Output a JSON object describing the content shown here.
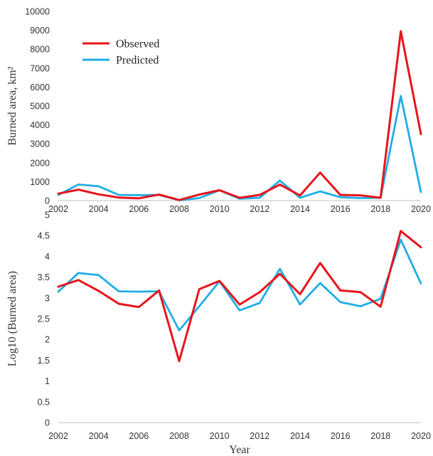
{
  "chart_data": [
    {
      "type": "line",
      "title": "",
      "xlabel": "",
      "ylabel": "Burned area, km²",
      "ylim": [
        0,
        10000
      ],
      "yticks": [
        0,
        1000,
        2000,
        3000,
        4000,
        5000,
        6000,
        7000,
        8000,
        9000,
        10000
      ],
      "xlim": [
        2002,
        2020
      ],
      "xticks": [
        2002,
        2004,
        2006,
        2008,
        2010,
        2012,
        2014,
        2016,
        2018,
        2020
      ],
      "grid": false,
      "legend_position": "top-left",
      "x": [
        2002,
        2003,
        2004,
        2005,
        2006,
        2007,
        2008,
        2009,
        2010,
        2011,
        2012,
        2013,
        2014,
        2015,
        2016,
        2017,
        2018,
        2019,
        2020
      ],
      "series": [
        {
          "name": "Observed",
          "color": "#e8141c",
          "values": [
            370,
            580,
            330,
            160,
            120,
            320,
            30,
            320,
            550,
            150,
            300,
            850,
            270,
            1480,
            300,
            280,
            150,
            8950,
            3520
          ]
        },
        {
          "name": "Predicted",
          "color": "#1faee6",
          "values": [
            300,
            850,
            760,
            300,
            290,
            300,
            20,
            130,
            550,
            100,
            150,
            1060,
            150,
            490,
            180,
            130,
            150,
            5530,
            460
          ]
        }
      ]
    },
    {
      "type": "line",
      "title": "",
      "xlabel": "Year",
      "ylabel": "Log10 (Burned area)",
      "ylim": [
        0,
        5
      ],
      "yticks": [
        0,
        0.5,
        1,
        1.5,
        2,
        2.5,
        3,
        3.5,
        4,
        4.5,
        5
      ],
      "xlim": [
        2002,
        2020
      ],
      "xticks": [
        2002,
        2004,
        2006,
        2008,
        2010,
        2012,
        2014,
        2016,
        2018,
        2020
      ],
      "grid": false,
      "x": [
        2002,
        2003,
        2004,
        2005,
        2006,
        2007,
        2008,
        2009,
        2010,
        2011,
        2012,
        2013,
        2014,
        2015,
        2016,
        2017,
        2018,
        2019,
        2020
      ],
      "series": [
        {
          "name": "Observed",
          "color": "#e8141c",
          "values": [
            3.27,
            3.43,
            3.17,
            2.86,
            2.78,
            3.18,
            1.48,
            3.21,
            3.41,
            2.84,
            3.14,
            3.58,
            3.09,
            3.84,
            3.18,
            3.14,
            2.79,
            4.61,
            4.22
          ]
        },
        {
          "name": "Predicted",
          "color": "#1faee6",
          "values": [
            3.15,
            3.6,
            3.55,
            3.16,
            3.15,
            3.16,
            2.22,
            2.8,
            3.4,
            2.7,
            2.88,
            3.7,
            2.84,
            3.36,
            2.9,
            2.8,
            2.98,
            4.4,
            3.35
          ]
        }
      ]
    }
  ]
}
